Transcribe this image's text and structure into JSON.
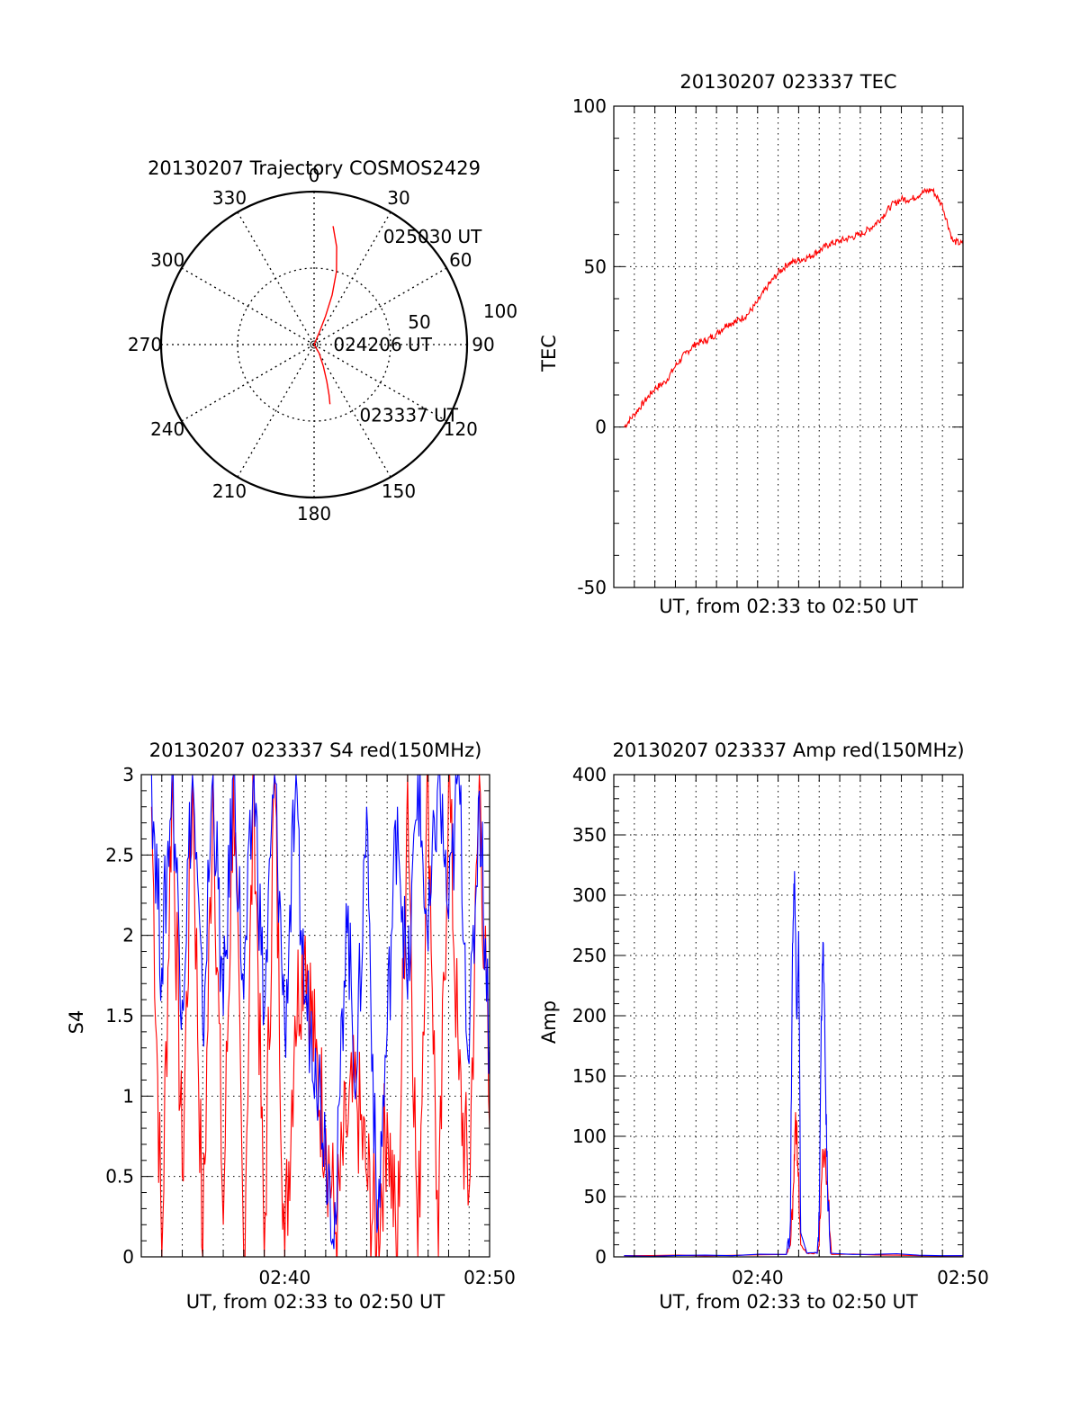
{
  "colors": {
    "primary": "#ff0000",
    "secondary": "#0000ff",
    "axis": "#000000",
    "grid": "#000000"
  },
  "chart_data": [
    {
      "id": "trajectory",
      "type": "polar",
      "title": "20130207 Trajectory COSMOS2429",
      "angular_ticks": [
        "0",
        "30",
        "60",
        "90",
        "120",
        "150",
        "180",
        "210",
        "240",
        "270",
        "300",
        "330"
      ],
      "radial_ticks": [
        "50",
        "100"
      ],
      "radial_range": [
        0,
        100
      ],
      "grid": true,
      "series": [
        {
          "color": "#ff0000",
          "points_az_el": [
            [
              9.1,
              19.4
            ],
            [
              13,
              31
            ],
            [
              17,
              45
            ],
            [
              20,
              59
            ],
            [
              21.9,
              72
            ],
            [
              23,
              81.5
            ],
            [
              75,
              90
            ],
            [
              150,
              84
            ],
            [
              157,
              76
            ],
            [
              161,
              67
            ],
            [
              163.5,
              59
            ],
            [
              165.1,
              53.7
            ]
          ]
        }
      ],
      "annotations": [
        {
          "text": "025030 UT",
          "az": 32.6,
          "el": 14.5
        },
        {
          "text": "024206 UT",
          "az": 90,
          "el": 78.7
        },
        {
          "text": "023337 UT",
          "az": 147.2,
          "el": 40.7
        }
      ]
    },
    {
      "id": "tec",
      "type": "line",
      "title": "20130207 023337 TEC",
      "xlabel": "UT, from 02:33 to 02:50 UT",
      "ylabel": "TEC",
      "xlim": [
        0,
        17
      ],
      "ylim": [
        -50,
        100
      ],
      "yticks": [
        -50,
        0,
        50,
        100
      ],
      "grid": true,
      "series": [
        {
          "color": "#ff0000",
          "x": [
            0.5,
            1,
            1.5,
            2,
            2.5,
            3,
            3.5,
            4,
            4.5,
            5,
            5.5,
            6,
            6.5,
            7,
            7.5,
            8,
            8.5,
            9,
            9.5,
            10,
            10.5,
            11,
            11.5,
            12,
            12.5,
            13,
            13.5,
            14,
            14.5,
            15,
            15.5,
            16,
            16.5,
            17
          ],
          "y": [
            0,
            4,
            8,
            12,
            14,
            19,
            23,
            26,
            27,
            29,
            32,
            33,
            35,
            39,
            44,
            48,
            51,
            52,
            53,
            55,
            57,
            58,
            59,
            60,
            62,
            65,
            69,
            71,
            71,
            73,
            74,
            69,
            58,
            57
          ]
        }
      ]
    },
    {
      "id": "s4",
      "type": "line",
      "title": "20130207 023337 S4 red(150MHz)",
      "xlabel": "UT, from 02:33 to 02:50 UT",
      "ylabel": "S4",
      "xlim": [
        0,
        17
      ],
      "ylim": [
        0,
        3
      ],
      "yticks": [
        "0",
        "0.5",
        "1",
        "1.5",
        "2",
        "2.5",
        "3"
      ],
      "xticks": [
        "02:40",
        "02:50"
      ],
      "grid": true,
      "series": [
        {
          "color": "#ff0000",
          "x": [
            0.5,
            1,
            1.5,
            2,
            2.5,
            3,
            3.5,
            4,
            4.5,
            5,
            5.5,
            6,
            6.5,
            7,
            7.5,
            8,
            8.5,
            9,
            9.5,
            10,
            10.5,
            11,
            11.5,
            12,
            12.5,
            13,
            13.5,
            14,
            14.5,
            15,
            15.5,
            16,
            16.5,
            17
          ],
          "y": [
            2.8,
            0,
            3,
            0.5,
            3,
            0,
            3,
            0.2,
            3,
            0,
            3,
            0,
            3,
            0,
            1.5,
            2,
            1.2,
            0.8,
            0.15,
            0.8,
            1,
            0.5,
            0.12,
            0.9,
            0,
            3,
            0,
            3,
            0,
            3,
            1.1,
            0.4,
            3,
            0.8
          ]
        },
        {
          "color": "#0000ff",
          "x": [
            0.5,
            1,
            1.5,
            2,
            2.5,
            3,
            3.5,
            4,
            4.5,
            5,
            5.5,
            6,
            6.5,
            7,
            7.5,
            8,
            8.5,
            9,
            9.5,
            10,
            10.5,
            11,
            11.5,
            12,
            12.5,
            13,
            13.5,
            14,
            14.5,
            15,
            15.5,
            16,
            16.5,
            17
          ],
          "y": [
            3,
            1.8,
            3,
            1.6,
            3,
            1.4,
            3,
            1.5,
            3,
            1.6,
            3,
            1.5,
            3,
            1.4,
            2.8,
            1.6,
            1.3,
            0.7,
            0.2,
            2.2,
            1.1,
            2.8,
            0.15,
            1.4,
            2.8,
            1.6,
            3,
            1.9,
            3,
            2.1,
            3,
            1.2,
            2.9,
            1.3
          ]
        }
      ]
    },
    {
      "id": "amp",
      "type": "line",
      "title": "20130207 023337 Amp red(150MHz)",
      "xlabel": "UT, from 02:33 to 02:50 UT",
      "ylabel": "Amp",
      "xlim": [
        0,
        17
      ],
      "ylim": [
        0,
        400
      ],
      "yticks": [
        0,
        50,
        100,
        150,
        200,
        250,
        300,
        350,
        400
      ],
      "xticks": [
        "02:40",
        "02:50"
      ],
      "grid": true,
      "series": [
        {
          "color": "#ff0000",
          "x": [
            0.5,
            8.4,
            8.6,
            8.75,
            8.85,
            8.95,
            9.1,
            9.4,
            9.9,
            10,
            10.15,
            10.3,
            10.45,
            10.6,
            17
          ],
          "y": [
            1,
            2,
            10,
            60,
            120,
            80,
            10,
            3,
            3,
            10,
            80,
            90,
            40,
            2,
            1
          ]
        },
        {
          "color": "#0000ff",
          "x": [
            0.5,
            8.4,
            8.6,
            8.7,
            8.8,
            8.9,
            9.0,
            9.1,
            9.4,
            9.9,
            10,
            10.1,
            10.2,
            10.3,
            10.4,
            10.55,
            17
          ],
          "y": [
            1,
            2,
            30,
            260,
            320,
            200,
            270,
            20,
            3,
            3,
            30,
            200,
            260,
            150,
            60,
            3,
            1
          ]
        }
      ]
    }
  ]
}
